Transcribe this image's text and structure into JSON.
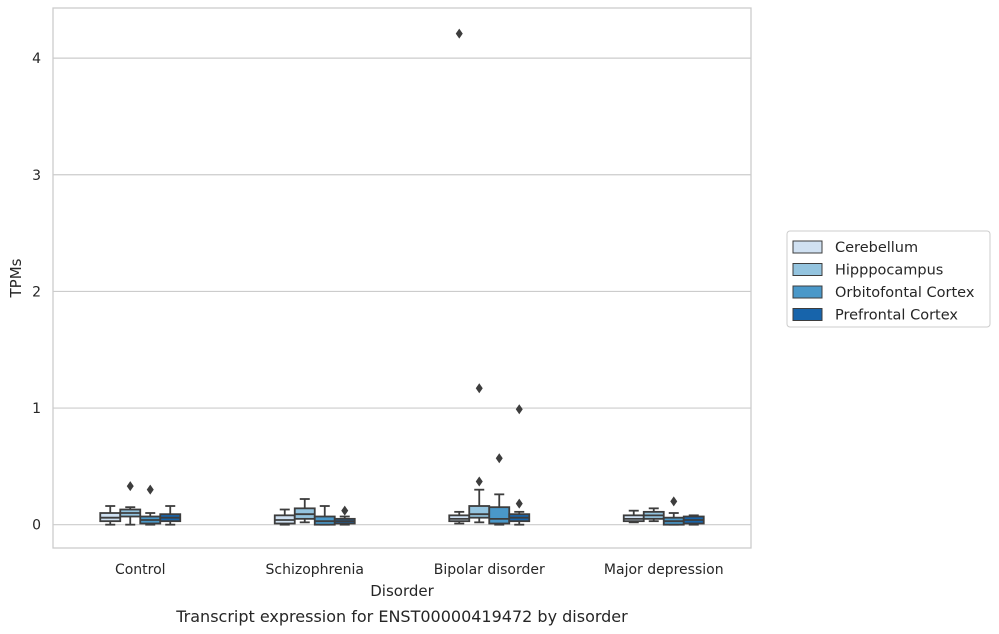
{
  "caption": "Transcript expression for ENST00000419472 by disorder",
  "chart_data": {
    "type": "box",
    "xlabel": "Disorder",
    "ylabel": "TPMs",
    "ylim": [
      -0.2,
      4.43
    ],
    "yticks": [
      0,
      1,
      2,
      3,
      4
    ],
    "grid": "horizontal",
    "legend_position": "right",
    "categories": [
      "Control",
      "Schizophrenia",
      "Bipolar disorder",
      "Major depression"
    ],
    "series": [
      {
        "name": "Cerebellum",
        "color": "#d0e1f2",
        "boxes": [
          {
            "whisker_low": 0.0,
            "q1": 0.03,
            "median": 0.06,
            "q3": 0.1,
            "whisker_high": 0.16,
            "outliers": []
          },
          {
            "whisker_low": 0.0,
            "q1": 0.01,
            "median": 0.04,
            "q3": 0.08,
            "whisker_high": 0.13,
            "outliers": []
          },
          {
            "whisker_low": 0.01,
            "q1": 0.03,
            "median": 0.05,
            "q3": 0.08,
            "whisker_high": 0.11,
            "outliers": [
              4.21
            ]
          },
          {
            "whisker_low": 0.02,
            "q1": 0.03,
            "median": 0.05,
            "q3": 0.08,
            "whisker_high": 0.12,
            "outliers": []
          }
        ]
      },
      {
        "name": "Hipppocampus",
        "color": "#94c4df",
        "boxes": [
          {
            "whisker_low": 0.0,
            "q1": 0.07,
            "median": 0.1,
            "q3": 0.13,
            "whisker_high": 0.15,
            "outliers": [
              0.33
            ]
          },
          {
            "whisker_low": 0.02,
            "q1": 0.05,
            "median": 0.09,
            "q3": 0.14,
            "whisker_high": 0.22,
            "outliers": []
          },
          {
            "whisker_low": 0.02,
            "q1": 0.06,
            "median": 0.09,
            "q3": 0.16,
            "whisker_high": 0.3,
            "outliers": [
              1.17,
              0.37
            ]
          },
          {
            "whisker_low": 0.03,
            "q1": 0.05,
            "median": 0.08,
            "q3": 0.11,
            "whisker_high": 0.14,
            "outliers": []
          }
        ]
      },
      {
        "name": "Orbitofontal Cortex",
        "color": "#4a98c9",
        "boxes": [
          {
            "whisker_low": 0.0,
            "q1": 0.01,
            "median": 0.04,
            "q3": 0.07,
            "whisker_high": 0.1,
            "outliers": [
              0.3
            ]
          },
          {
            "whisker_low": 0.0,
            "q1": 0.0,
            "median": 0.03,
            "q3": 0.07,
            "whisker_high": 0.16,
            "outliers": []
          },
          {
            "whisker_low": 0.0,
            "q1": 0.01,
            "median": 0.05,
            "q3": 0.15,
            "whisker_high": 0.26,
            "outliers": [
              0.57
            ]
          },
          {
            "whisker_low": 0.0,
            "q1": 0.0,
            "median": 0.03,
            "q3": 0.06,
            "whisker_high": 0.1,
            "outliers": [
              0.2
            ]
          }
        ]
      },
      {
        "name": "Prefrontal Cortex",
        "color": "#1764ab",
        "boxes": [
          {
            "whisker_low": 0.0,
            "q1": 0.03,
            "median": 0.06,
            "q3": 0.09,
            "whisker_high": 0.16,
            "outliers": []
          },
          {
            "whisker_low": 0.0,
            "q1": 0.01,
            "median": 0.03,
            "q3": 0.05,
            "whisker_high": 0.07,
            "outliers": [
              0.12
            ]
          },
          {
            "whisker_low": 0.0,
            "q1": 0.03,
            "median": 0.06,
            "q3": 0.09,
            "whisker_high": 0.11,
            "outliers": [
              0.99,
              0.18
            ]
          },
          {
            "whisker_low": 0.0,
            "q1": 0.01,
            "median": 0.04,
            "q3": 0.07,
            "whisker_high": 0.08,
            "outliers": []
          }
        ]
      }
    ]
  }
}
